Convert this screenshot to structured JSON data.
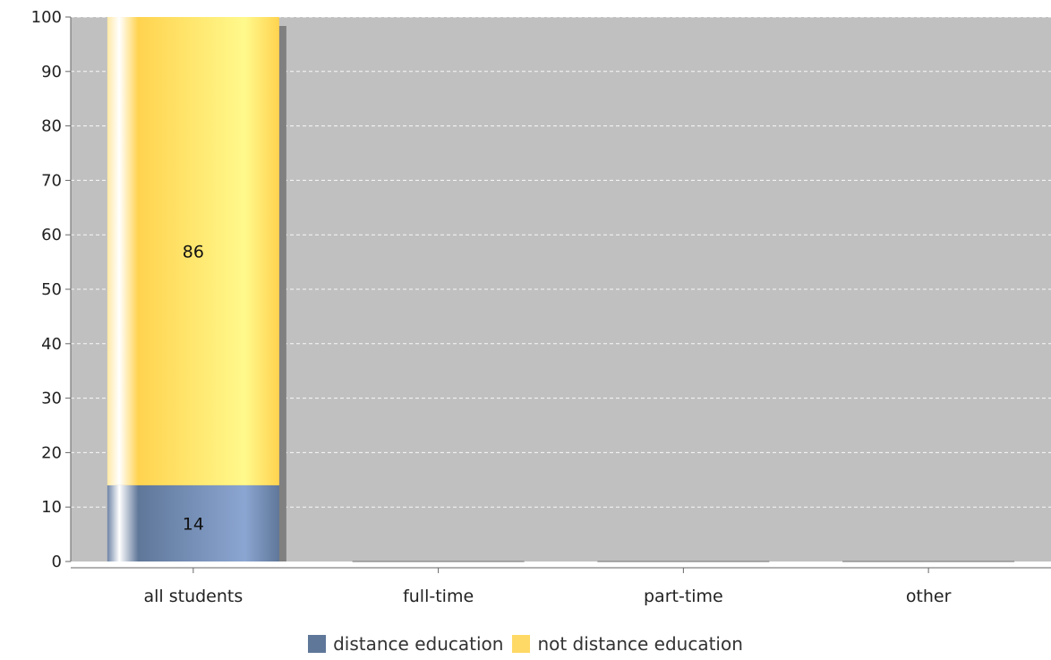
{
  "chart_data": {
    "type": "bar",
    "stacked": true,
    "categories": [
      "all students",
      "full-time",
      "part-time",
      "other"
    ],
    "series": [
      {
        "name": "distance education",
        "values": [
          14,
          0,
          0,
          0
        ],
        "color": "#5f7799"
      },
      {
        "name": "not distance education",
        "values": [
          86,
          0,
          0,
          0
        ],
        "color": "#ffd966"
      }
    ],
    "data_labels": [
      [
        "14",
        "",
        "",
        ""
      ],
      [
        "86",
        "",
        "",
        ""
      ]
    ],
    "y_ticks": [
      "0",
      "10",
      "20",
      "30",
      "40",
      "50",
      "60",
      "70",
      "80",
      "90",
      "100"
    ],
    "ylim": [
      0,
      100
    ],
    "title": "",
    "xlabel": "",
    "ylabel": "",
    "grid": true,
    "legend_position": "bottom",
    "plot_background": "#c0c0c0"
  }
}
